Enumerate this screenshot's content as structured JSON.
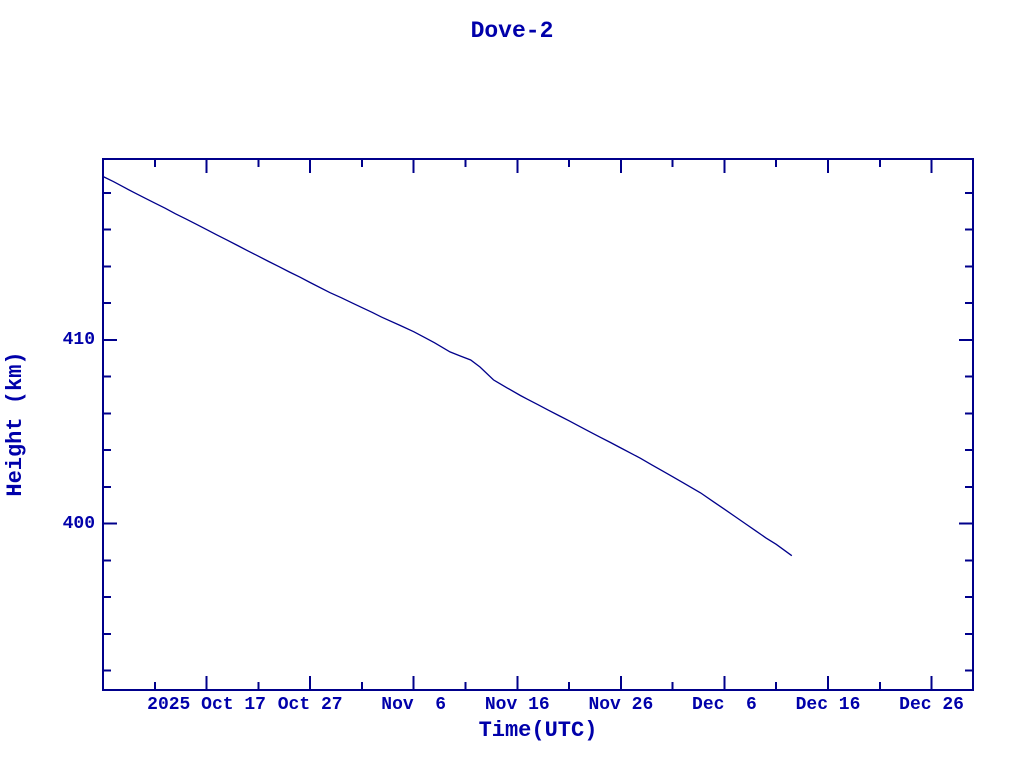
{
  "colors": {
    "line": "#00008b",
    "frame": "#00008b",
    "text": "#0000aa",
    "background": "#ffffff"
  },
  "chart_data": {
    "type": "line",
    "title": "Dove-2",
    "xlabel": "Time(UTC)",
    "ylabel": "Height (km)",
    "grid": false,
    "legend": null,
    "x_axis": {
      "unit": "days since 2025 Oct 7 (UTC)",
      "range": [
        0,
        84
      ],
      "major_ticks": [
        {
          "day": 10,
          "label": "2025 Oct 17"
        },
        {
          "day": 20,
          "label": "Oct 27"
        },
        {
          "day": 30,
          "label": "Nov  6"
        },
        {
          "day": 40,
          "label": "Nov 16"
        },
        {
          "day": 50,
          "label": "Nov 26"
        },
        {
          "day": 60,
          "label": "Dec  6"
        },
        {
          "day": 70,
          "label": "Dec 16"
        },
        {
          "day": 80,
          "label": "Dec 26"
        }
      ],
      "minor_tick_days": [
        5,
        15,
        25,
        35,
        45,
        55,
        65,
        75
      ]
    },
    "y_axis": {
      "unit": "km",
      "range": [
        390.95,
        419.85
      ],
      "major_ticks": [
        {
          "value": 400,
          "label": "400"
        },
        {
          "value": 410,
          "label": "410"
        }
      ],
      "minor_tick_values": [
        392,
        394,
        396,
        398,
        402,
        404,
        406,
        408,
        412,
        414,
        416,
        418
      ]
    },
    "series": [
      {
        "name": "Height (km)",
        "color": "#00008b",
        "points": [
          [
            0,
            418.9
          ],
          [
            1,
            418.62
          ],
          [
            2,
            418.32
          ],
          [
            3,
            418.02
          ],
          [
            4,
            417.74
          ],
          [
            5,
            417.45
          ],
          [
            6,
            417.17
          ],
          [
            7,
            416.87
          ],
          [
            8,
            416.59
          ],
          [
            9,
            416.3
          ],
          [
            10,
            416.01
          ],
          [
            11,
            415.72
          ],
          [
            12,
            415.43
          ],
          [
            13,
            415.14
          ],
          [
            14,
            414.85
          ],
          [
            15,
            414.56
          ],
          [
            16,
            414.27
          ],
          [
            17,
            413.99
          ],
          [
            18,
            413.7
          ],
          [
            19,
            413.42
          ],
          [
            20,
            413.13
          ],
          [
            21.9,
            412.58
          ],
          [
            23,
            412.3
          ],
          [
            24,
            412.03
          ],
          [
            25,
            411.76
          ],
          [
            26,
            411.5
          ],
          [
            27,
            411.22
          ],
          [
            28.7,
            410.79
          ],
          [
            30,
            410.45
          ],
          [
            31,
            410.15
          ],
          [
            32,
            409.85
          ],
          [
            33.5,
            409.35
          ],
          [
            34.5,
            409.13
          ],
          [
            35.5,
            408.91
          ],
          [
            36.4,
            408.53
          ],
          [
            37.7,
            407.83
          ],
          [
            39,
            407.4
          ],
          [
            40.3,
            406.98
          ],
          [
            41,
            406.77
          ],
          [
            42,
            406.48
          ],
          [
            43,
            406.18
          ],
          [
            44,
            405.89
          ],
          [
            45,
            405.6
          ],
          [
            46,
            405.3
          ],
          [
            47,
            405.0
          ],
          [
            48,
            404.71
          ],
          [
            49,
            404.42
          ],
          [
            50,
            404.12
          ],
          [
            51.9,
            403.56
          ],
          [
            53,
            403.2
          ],
          [
            54,
            402.88
          ],
          [
            55,
            402.56
          ],
          [
            56,
            402.23
          ],
          [
            57.7,
            401.68
          ],
          [
            59,
            401.17
          ],
          [
            60,
            400.79
          ],
          [
            61,
            400.4
          ],
          [
            62,
            400.01
          ],
          [
            63,
            399.62
          ],
          [
            64,
            399.23
          ],
          [
            65,
            398.88
          ],
          [
            66.5,
            398.26
          ]
        ]
      }
    ]
  }
}
